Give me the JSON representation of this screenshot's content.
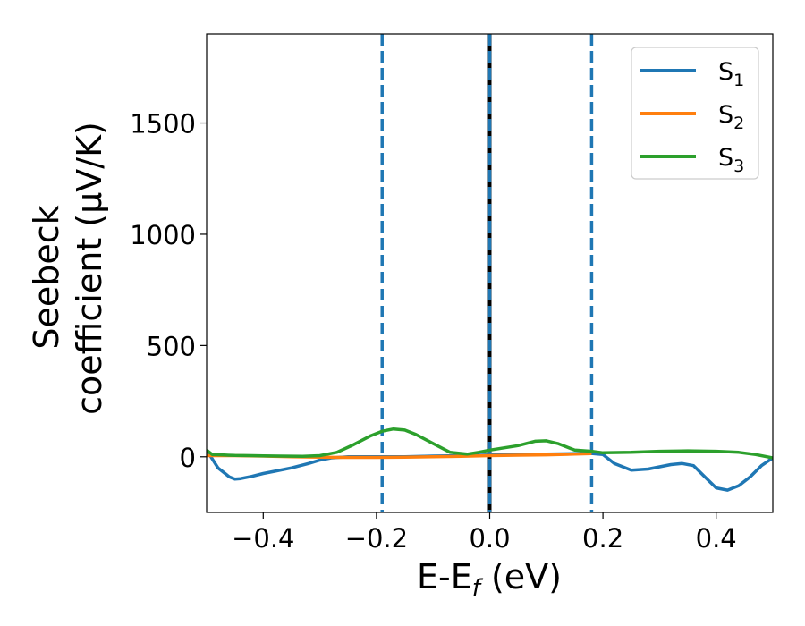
{
  "chart_data": {
    "type": "line",
    "xlabel": {
      "main": "E-E",
      "sub": "f",
      "unit": " (eV)"
    },
    "ylabel": {
      "line1": "Seebeck",
      "line2": "coefficient  (μV/K)"
    },
    "xlim": [
      -0.5,
      0.5
    ],
    "ylim": [
      -250,
      1900
    ],
    "xticks": [
      -0.4,
      -0.2,
      0.0,
      0.2,
      0.4
    ],
    "xtick_labels": [
      "−0.4",
      "−0.2",
      "0.0",
      "0.2",
      "0.4"
    ],
    "yticks": [
      0,
      500,
      1000,
      1500
    ],
    "ytick_labels": [
      "0",
      "500",
      "1000",
      "1500"
    ],
    "grid": false,
    "legend_position": "top-right",
    "vlines": [
      {
        "x": 0.0,
        "color": "#000000",
        "style": "solid"
      },
      {
        "x": -0.19,
        "color": "#1f77b4",
        "style": "dashed"
      },
      {
        "x": 0.0,
        "color": "#1f77b4",
        "style": "dashed"
      },
      {
        "x": 0.18,
        "color": "#1f77b4",
        "style": "dashed"
      }
    ],
    "series": [
      {
        "name": "S",
        "sub": "1",
        "color": "#1f77b4",
        "x": [
          -0.5,
          -0.48,
          -0.46,
          -0.45,
          -0.44,
          -0.42,
          -0.4,
          -0.38,
          -0.35,
          -0.32,
          -0.3,
          -0.28,
          -0.25,
          -0.2,
          -0.15,
          -0.1,
          -0.05,
          0.0,
          0.05,
          0.1,
          0.15,
          0.18,
          0.2,
          0.22,
          0.25,
          0.28,
          0.3,
          0.32,
          0.34,
          0.36,
          0.38,
          0.4,
          0.42,
          0.44,
          0.46,
          0.48,
          0.5
        ],
        "y": [
          30,
          -50,
          -90,
          -100,
          -98,
          -88,
          -75,
          -65,
          -50,
          -30,
          -15,
          -5,
          0,
          0,
          0,
          3,
          5,
          8,
          10,
          12,
          14,
          15,
          10,
          -30,
          -60,
          -55,
          -45,
          -35,
          -30,
          -40,
          -90,
          -140,
          -150,
          -130,
          -90,
          -40,
          -5
        ]
      },
      {
        "name": "S",
        "sub": "2",
        "color": "#ff7f0e",
        "x": [
          -0.5,
          -0.45,
          -0.4,
          -0.35,
          -0.3,
          -0.25,
          -0.2,
          -0.15,
          -0.1,
          -0.05,
          0.0,
          0.05,
          0.1,
          0.15,
          0.18
        ],
        "y": [
          5,
          5,
          3,
          0,
          -2,
          -3,
          -3,
          -2,
          0,
          2,
          5,
          7,
          9,
          12,
          14
        ]
      },
      {
        "name": "S",
        "sub": "3",
        "color": "#2ca02c",
        "x": [
          -0.5,
          -0.49,
          -0.47,
          -0.45,
          -0.42,
          -0.4,
          -0.37,
          -0.33,
          -0.3,
          -0.27,
          -0.24,
          -0.21,
          -0.19,
          -0.17,
          -0.15,
          -0.13,
          -0.1,
          -0.07,
          -0.04,
          -0.02,
          0.0,
          0.02,
          0.05,
          0.08,
          0.1,
          0.12,
          0.15,
          0.18,
          0.2,
          0.25,
          0.3,
          0.35,
          0.4,
          0.44,
          0.47,
          0.5
        ],
        "y": [
          30,
          10,
          8,
          6,
          5,
          4,
          3,
          2,
          5,
          20,
          55,
          95,
          115,
          125,
          120,
          100,
          60,
          20,
          12,
          20,
          30,
          38,
          50,
          70,
          72,
          60,
          30,
          25,
          18,
          20,
          25,
          27,
          25,
          20,
          10,
          -5
        ]
      }
    ]
  }
}
